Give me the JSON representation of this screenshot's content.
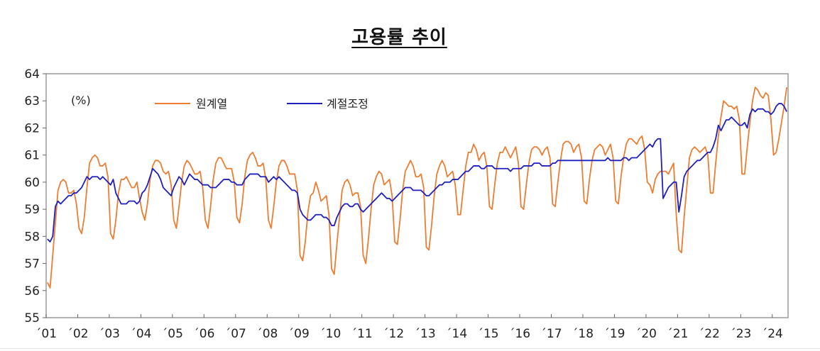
{
  "chart_data": {
    "type": "line",
    "title": "고용률 추이",
    "unit_label": "(%)",
    "ylim": [
      55,
      64
    ],
    "yticks": [
      55,
      56,
      57,
      58,
      59,
      60,
      61,
      62,
      63,
      64
    ],
    "x_range": [
      2001.0,
      2024.5
    ],
    "xtick_labels": [
      "´01",
      "´02",
      "´03",
      "´04",
      "´05",
      "´06",
      "´07",
      "´08",
      "´09",
      "´10",
      "´11",
      "´12",
      "´13",
      "´14",
      "´15",
      "´16",
      "´17",
      "´18",
      "´19",
      "´20",
      "´21",
      "´22",
      "´23",
      "´24"
    ],
    "legend": "top-left",
    "grid": false,
    "series": [
      {
        "name": "원계열",
        "color": "#ED7D31",
        "values_by_year": [
          [
            56.3,
            56.1,
            57.3,
            58.5,
            59.7,
            60.0,
            60.1,
            60.0,
            59.6,
            59.6,
            59.7,
            59.2
          ],
          [
            58.3,
            58.1,
            58.7,
            59.8,
            60.7,
            60.9,
            61.0,
            60.9,
            60.6,
            60.6,
            60.7,
            60.2
          ],
          [
            58.1,
            57.9,
            58.6,
            59.6,
            60.1,
            60.1,
            60.2,
            60.0,
            59.8,
            59.8,
            60.0,
            59.4
          ],
          [
            58.9,
            58.6,
            59.2,
            60.1,
            60.6,
            60.8,
            60.8,
            60.7,
            60.4,
            60.3,
            60.4,
            59.9
          ],
          [
            58.6,
            58.3,
            59.1,
            60.0,
            60.6,
            60.8,
            60.7,
            60.5,
            60.3,
            60.3,
            60.4,
            59.8
          ],
          [
            58.6,
            58.3,
            59.1,
            60.1,
            60.7,
            60.9,
            60.9,
            60.7,
            60.5,
            60.5,
            60.5,
            60.0
          ],
          [
            58.7,
            58.5,
            59.2,
            60.2,
            60.8,
            61.0,
            61.1,
            60.9,
            60.6,
            60.6,
            60.7,
            60.1
          ],
          [
            58.6,
            58.3,
            59.1,
            60.0,
            60.6,
            60.8,
            60.8,
            60.6,
            60.3,
            60.3,
            60.3,
            59.7
          ],
          [
            57.3,
            57.1,
            57.8,
            58.9,
            59.5,
            59.6,
            60.0,
            59.7,
            59.3,
            59.4,
            59.5,
            58.8
          ],
          [
            56.8,
            56.6,
            57.7,
            58.7,
            59.7,
            60.0,
            60.1,
            59.9,
            59.5,
            59.6,
            59.6,
            59.1
          ],
          [
            57.3,
            57.0,
            57.9,
            59.0,
            59.9,
            60.2,
            60.4,
            60.3,
            59.9,
            60.0,
            60.1,
            59.5
          ],
          [
            57.8,
            57.7,
            58.6,
            59.7,
            60.4,
            60.6,
            60.8,
            60.6,
            60.2,
            60.2,
            60.3,
            59.8
          ],
          [
            57.6,
            57.5,
            58.4,
            59.5,
            60.3,
            60.6,
            60.8,
            60.6,
            60.2,
            60.3,
            60.4,
            59.9
          ],
          [
            58.8,
            58.8,
            59.7,
            60.6,
            61.1,
            61.1,
            61.4,
            61.2,
            60.8,
            61.0,
            61.1,
            60.6
          ],
          [
            59.1,
            59.0,
            59.9,
            60.7,
            61.1,
            61.1,
            61.3,
            61.1,
            60.9,
            61.1,
            61.3,
            60.7
          ],
          [
            59.1,
            59.0,
            59.9,
            60.7,
            61.2,
            61.3,
            61.3,
            61.2,
            61.0,
            61.2,
            61.3,
            60.9
          ],
          [
            59.2,
            59.1,
            60.0,
            60.8,
            61.4,
            61.5,
            61.5,
            61.4,
            61.1,
            61.3,
            61.4,
            60.9
          ],
          [
            59.3,
            59.2,
            60.1,
            60.8,
            61.2,
            61.3,
            61.4,
            61.3,
            61.0,
            61.2,
            61.4,
            60.9
          ],
          [
            59.3,
            59.2,
            60.2,
            60.9,
            61.4,
            61.6,
            61.6,
            61.5,
            61.4,
            61.6,
            61.7,
            61.2
          ],
          [
            60.0,
            59.9,
            59.6,
            60.1,
            60.3,
            60.4,
            60.4,
            60.4,
            60.3,
            60.5,
            60.7,
            58.8
          ],
          [
            57.5,
            57.4,
            58.7,
            59.8,
            60.9,
            61.2,
            61.3,
            61.2,
            61.1,
            61.2,
            61.3,
            61.0
          ],
          [
            59.6,
            59.6,
            60.7,
            61.7,
            62.4,
            63.0,
            62.9,
            62.8,
            62.8,
            62.7,
            62.8,
            62.3
          ],
          [
            60.3,
            60.3,
            61.3,
            62.2,
            63.0,
            63.5,
            63.4,
            63.2,
            63.1,
            63.3,
            63.2,
            62.3
          ],
          [
            61.0,
            61.1,
            61.6,
            62.2,
            62.8,
            63.5
          ]
        ]
      },
      {
        "name": "계절조정",
        "color": "#1F1FBF",
        "values_by_year": [
          [
            57.9,
            57.8,
            58.0,
            59.1,
            59.3,
            59.2,
            59.3,
            59.4,
            59.5,
            59.5,
            59.6,
            59.6
          ],
          [
            59.7,
            59.8,
            60.0,
            60.2,
            60.1,
            60.2,
            60.2,
            60.2,
            60.1,
            60.2,
            60.1,
            60.0
          ],
          [
            59.9,
            60.1,
            59.6,
            59.4,
            59.2,
            59.2,
            59.2,
            59.3,
            59.3,
            59.3,
            59.2,
            59.3
          ],
          [
            59.6,
            59.7,
            59.9,
            60.2,
            60.5,
            60.4,
            60.3,
            60.1,
            59.8,
            59.7,
            59.6,
            59.5
          ],
          [
            59.8,
            60.0,
            60.2,
            60.1,
            59.9,
            60.1,
            60.3,
            60.2,
            60.1,
            60.1,
            60.0,
            59.9
          ],
          [
            59.9,
            59.9,
            59.8,
            59.8,
            59.8,
            59.9,
            60.0,
            60.1,
            60.1,
            60.1,
            60.0,
            60.0
          ],
          [
            59.9,
            59.9,
            59.9,
            60.1,
            60.2,
            60.3,
            60.3,
            60.3,
            60.3,
            60.2,
            60.2,
            60.2
          ],
          [
            60.0,
            60.1,
            60.2,
            60.1,
            60.2,
            60.1,
            60.0,
            59.9,
            59.8,
            59.7,
            59.7,
            59.6
          ],
          [
            59.0,
            58.8,
            58.7,
            58.6,
            58.6,
            58.7,
            58.8,
            58.8,
            58.8,
            58.7,
            58.7,
            58.6
          ],
          [
            58.4,
            58.4,
            58.7,
            58.9,
            59.1,
            59.2,
            59.2,
            59.1,
            59.1,
            59.2,
            59.2,
            59.0
          ],
          [
            58.9,
            59.0,
            59.1,
            59.2,
            59.3,
            59.4,
            59.5,
            59.6,
            59.5,
            59.4,
            59.4,
            59.3
          ],
          [
            59.4,
            59.5,
            59.6,
            59.7,
            59.8,
            59.8,
            59.8,
            59.7,
            59.7,
            59.7,
            59.7,
            59.6
          ],
          [
            59.5,
            59.5,
            59.6,
            59.7,
            59.8,
            59.9,
            59.9,
            60.0,
            60.0,
            60.0,
            60.1,
            60.1
          ],
          [
            60.1,
            60.2,
            60.3,
            60.4,
            60.4,
            60.5,
            60.6,
            60.6,
            60.6,
            60.5,
            60.5,
            60.6
          ],
          [
            60.6,
            60.6,
            60.5,
            60.5,
            60.5,
            60.5,
            60.5,
            60.5,
            60.4,
            60.5,
            60.5,
            60.5
          ],
          [
            60.5,
            60.6,
            60.6,
            60.6,
            60.6,
            60.7,
            60.7,
            60.7,
            60.6,
            60.6,
            60.6,
            60.6
          ],
          [
            60.7,
            60.7,
            60.8,
            60.8,
            60.8,
            60.8,
            60.8,
            60.8,
            60.8,
            60.8,
            60.8,
            60.8
          ],
          [
            60.8,
            60.8,
            60.8,
            60.8,
            60.8,
            60.8,
            60.8,
            60.8,
            60.8,
            60.9,
            60.8,
            60.8
          ],
          [
            60.8,
            60.8,
            60.8,
            60.9,
            60.9,
            60.8,
            60.9,
            60.9,
            60.9,
            61.0,
            61.1,
            61.2
          ],
          [
            61.3,
            61.4,
            61.3,
            61.5,
            61.6,
            61.6,
            59.4,
            59.6,
            59.8,
            59.9,
            60.0,
            60.0
          ],
          [
            58.9,
            59.5,
            60.2,
            60.4,
            60.5,
            60.6,
            60.7,
            60.8,
            60.8,
            60.9,
            61.0,
            61.1
          ],
          [
            61.1,
            61.3,
            61.6,
            62.1,
            61.9,
            62.1,
            62.3,
            62.3,
            62.4,
            62.3,
            62.2,
            62.1
          ],
          [
            62.1,
            62.2,
            62.0,
            62.5,
            62.7,
            62.6,
            62.7,
            62.7,
            62.7,
            62.6,
            62.6,
            62.5
          ],
          [
            62.6,
            62.8,
            62.9,
            62.9,
            62.8,
            62.6
          ]
        ]
      }
    ]
  }
}
